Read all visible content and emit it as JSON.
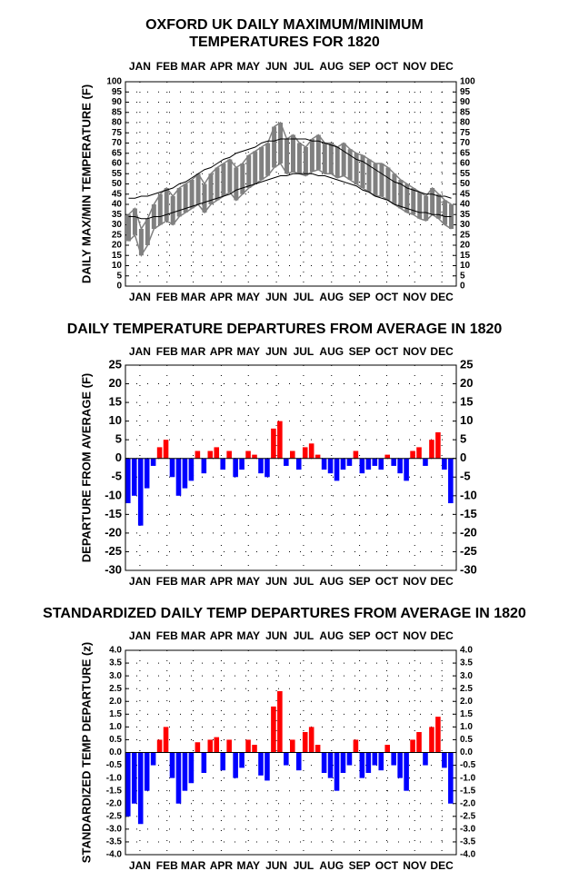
{
  "chart_data": [
    {
      "type": "range_line",
      "title": [
        "OXFORD UK DAILY MAXIMUM/MINIMUM",
        "TEMPERATURES FOR 1820"
      ],
      "y_label": "DAILY MAX/MIN TEMPERATURE (F)",
      "xlim": [
        0,
        366
      ],
      "xticks": [
        {
          "value": 16,
          "label": "JAN"
        },
        {
          "value": 46,
          "label": "FEB"
        },
        {
          "value": 75,
          "label": "MAR"
        },
        {
          "value": 106,
          "label": "APR"
        },
        {
          "value": 136,
          "label": "MAY"
        },
        {
          "value": 167,
          "label": "JUN"
        },
        {
          "value": 197,
          "label": "JUL"
        },
        {
          "value": 228,
          "label": "AUG"
        },
        {
          "value": 259,
          "label": "SEP"
        },
        {
          "value": 289,
          "label": "OCT"
        },
        {
          "value": 320,
          "label": "NOV"
        },
        {
          "value": 350,
          "label": "DEC"
        }
      ],
      "ylim": [
        0,
        100
      ],
      "yticks": [
        0,
        5,
        10,
        15,
        20,
        25,
        30,
        35,
        40,
        45,
        50,
        55,
        60,
        65,
        70,
        75,
        80,
        85,
        90,
        95,
        100
      ],
      "grid": true,
      "x": [
        3.5,
        10.5,
        17.5,
        24.5,
        31.5,
        38.5,
        45.5,
        52.5,
        59.5,
        66.5,
        73.5,
        80.5,
        87.5,
        94.5,
        101.5,
        108.5,
        115.5,
        122.5,
        129.5,
        136.5,
        143.5,
        150.5,
        157.5,
        164.5,
        171.5,
        178.5,
        185.5,
        192.5,
        199.5,
        206.5,
        213.5,
        220.5,
        227.5,
        234.5,
        241.5,
        248.5,
        255.5,
        262.5,
        269.5,
        276.5,
        283.5,
        290.5,
        297.5,
        304.5,
        311.5,
        318.5,
        325.5,
        332.5,
        339.5,
        346.5,
        353.5,
        360.5
      ],
      "series": [
        {
          "color": "#808080",
          "role": "range",
          "values": [
            35,
            38,
            28,
            33,
            40,
            45,
            48,
            44,
            48,
            50,
            52,
            55,
            50,
            55,
            58,
            60,
            62,
            58,
            60,
            64,
            66,
            68,
            70,
            78,
            80,
            72,
            74,
            70,
            68,
            72,
            74,
            70,
            70,
            68,
            70,
            67,
            65,
            64,
            62,
            60,
            60,
            58,
            55,
            52,
            50,
            48,
            46,
            44,
            48,
            45,
            42,
            40
          ]
        },
        {
          "color": "#808080",
          "role": "range",
          "values": [
            22,
            25,
            15,
            20,
            28,
            30,
            32,
            30,
            34,
            36,
            38,
            40,
            36,
            40,
            42,
            44,
            46,
            42,
            45,
            48,
            50,
            52,
            54,
            58,
            60,
            55,
            56,
            55,
            54,
            56,
            57,
            55,
            55,
            53,
            54,
            52,
            50,
            48,
            46,
            44,
            44,
            42,
            40,
            38,
            36,
            35,
            33,
            32,
            35,
            33,
            30,
            28
          ]
        },
        {
          "color": "#000000",
          "role": "normal",
          "values": [
            43,
            43,
            44,
            44,
            45,
            46,
            47,
            48,
            50,
            51,
            53,
            55,
            57,
            58,
            60,
            62,
            63,
            65,
            66,
            67,
            68,
            70,
            71,
            71,
            72,
            72,
            72,
            72,
            72,
            71,
            71,
            70,
            69,
            68,
            66,
            64,
            62,
            61,
            59,
            57,
            55,
            53,
            51,
            50,
            48,
            47,
            46,
            45,
            45,
            44,
            44,
            43
          ]
        },
        {
          "color": "#000000",
          "role": "normal",
          "values": [
            34,
            34,
            33,
            33,
            34,
            34,
            35,
            36,
            37,
            38,
            39,
            40,
            41,
            42,
            43,
            44,
            45,
            47,
            48,
            49,
            50,
            51,
            52,
            53,
            54,
            54,
            55,
            55,
            55,
            55,
            54,
            54,
            53,
            52,
            51,
            50,
            49,
            47,
            46,
            44,
            43,
            42,
            40,
            39,
            38,
            37,
            36,
            36,
            35,
            35,
            34,
            34
          ]
        }
      ]
    },
    {
      "type": "bar",
      "title": [
        "DAILY TEMPERATURE DEPARTURES FROM AVERAGE IN 1820"
      ],
      "y_label": "DEPARTURE FROM AVERAGE (F)",
      "xlim": [
        0,
        366
      ],
      "xticks": [
        {
          "value": 16,
          "label": "JAN"
        },
        {
          "value": 46,
          "label": "FEB"
        },
        {
          "value": 75,
          "label": "MAR"
        },
        {
          "value": 106,
          "label": "APR"
        },
        {
          "value": 136,
          "label": "MAY"
        },
        {
          "value": 167,
          "label": "JUN"
        },
        {
          "value": 197,
          "label": "JUL"
        },
        {
          "value": 228,
          "label": "AUG"
        },
        {
          "value": 259,
          "label": "SEP"
        },
        {
          "value": 289,
          "label": "OCT"
        },
        {
          "value": 320,
          "label": "NOV"
        },
        {
          "value": 350,
          "label": "DEC"
        }
      ],
      "ylim": [
        -30,
        25
      ],
      "yticks": [
        -30,
        -25,
        -20,
        -15,
        -10,
        -5,
        0,
        5,
        10,
        15,
        20,
        25
      ],
      "grid": true,
      "positive_color": "#ff0000",
      "negative_color": "#0000ff",
      "x": [
        3.5,
        10.5,
        17.5,
        24.5,
        31.5,
        38.5,
        45.5,
        52.5,
        59.5,
        66.5,
        73.5,
        80.5,
        87.5,
        94.5,
        101.5,
        108.5,
        115.5,
        122.5,
        129.5,
        136.5,
        143.5,
        150.5,
        157.5,
        164.5,
        171.5,
        178.5,
        185.5,
        192.5,
        199.5,
        206.5,
        213.5,
        220.5,
        227.5,
        234.5,
        241.5,
        248.5,
        255.5,
        262.5,
        269.5,
        276.5,
        283.5,
        290.5,
        297.5,
        304.5,
        311.5,
        318.5,
        325.5,
        332.5,
        339.5,
        346.5,
        353.5,
        360.5
      ],
      "values": [
        -12,
        -10,
        -18,
        -8,
        -2,
        3,
        5,
        -5,
        -10,
        -8,
        -6,
        2,
        -4,
        2,
        3,
        -3,
        2,
        -5,
        -3,
        2,
        1,
        -4,
        -5,
        8,
        10,
        -2,
        2,
        -3,
        3,
        4,
        1,
        -3,
        -4,
        -6,
        -3,
        -2,
        2,
        -4,
        -3,
        -2,
        -3,
        1,
        -2,
        -4,
        -6,
        2,
        3,
        -2,
        5,
        7,
        -3,
        -12
      ]
    },
    {
      "type": "bar",
      "title": [
        "STANDARDIZED DAILY TEMP DEPARTURES FROM AVERAGE IN 1820"
      ],
      "y_label": "STANDARDIZED TEMP DEPARTURE (z)",
      "xlim": [
        0,
        366
      ],
      "xticks": [
        {
          "value": 16,
          "label": "JAN"
        },
        {
          "value": 46,
          "label": "FEB"
        },
        {
          "value": 75,
          "label": "MAR"
        },
        {
          "value": 106,
          "label": "APR"
        },
        {
          "value": 136,
          "label": "MAY"
        },
        {
          "value": 167,
          "label": "JUN"
        },
        {
          "value": 197,
          "label": "JUL"
        },
        {
          "value": 228,
          "label": "AUG"
        },
        {
          "value": 259,
          "label": "SEP"
        },
        {
          "value": 289,
          "label": "OCT"
        },
        {
          "value": 320,
          "label": "NOV"
        },
        {
          "value": 350,
          "label": "DEC"
        }
      ],
      "ylim": [
        -4,
        4
      ],
      "yticks": [
        {
          "value": -4,
          "label": "-4.0"
        },
        -3.5,
        {
          "value": -3,
          "label": "-3.0"
        },
        -2.5,
        {
          "value": -2,
          "label": "-2.0"
        },
        -1.5,
        {
          "value": -1,
          "label": "-1.0"
        },
        -0.5,
        {
          "value": 0,
          "label": "0.0"
        },
        0.5,
        {
          "value": 1,
          "label": "1.0"
        },
        1.5,
        {
          "value": 2,
          "label": "2.0"
        },
        2.5,
        {
          "value": 3,
          "label": "3.0"
        },
        3.5,
        {
          "value": 4,
          "label": "4.0"
        }
      ],
      "grid": true,
      "positive_color": "#ff0000",
      "negative_color": "#0000ff",
      "x": [
        3.5,
        10.5,
        17.5,
        24.5,
        31.5,
        38.5,
        45.5,
        52.5,
        59.5,
        66.5,
        73.5,
        80.5,
        87.5,
        94.5,
        101.5,
        108.5,
        115.5,
        122.5,
        129.5,
        136.5,
        143.5,
        150.5,
        157.5,
        164.5,
        171.5,
        178.5,
        185.5,
        192.5,
        199.5,
        206.5,
        213.5,
        220.5,
        227.5,
        234.5,
        241.5,
        248.5,
        255.5,
        262.5,
        269.5,
        276.5,
        283.5,
        290.5,
        297.5,
        304.5,
        311.5,
        318.5,
        325.5,
        332.5,
        339.5,
        346.5,
        353.5,
        360.5
      ],
      "values": [
        -2.5,
        -2.0,
        -2.8,
        -1.5,
        -0.5,
        0.5,
        1.0,
        -1.0,
        -2.0,
        -1.5,
        -1.2,
        0.4,
        -0.8,
        0.5,
        0.6,
        -0.7,
        0.5,
        -1.0,
        -0.6,
        0.5,
        0.3,
        -0.9,
        -1.1,
        1.8,
        2.4,
        -0.5,
        0.5,
        -0.7,
        0.8,
        1.0,
        0.3,
        -0.8,
        -1.0,
        -1.5,
        -0.8,
        -0.5,
        0.5,
        -1.0,
        -0.8,
        -0.5,
        -0.7,
        0.3,
        -0.5,
        -1.0,
        -1.5,
        0.5,
        0.8,
        -0.5,
        1.0,
        1.4,
        -0.6,
        -2.0
      ]
    }
  ]
}
